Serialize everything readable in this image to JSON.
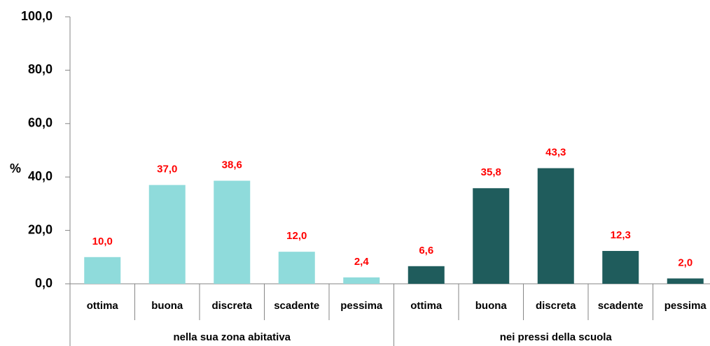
{
  "chart_data": {
    "type": "bar",
    "ylabel": "%",
    "ylim": [
      0,
      100
    ],
    "yticks": [
      {
        "value": 0,
        "label": "0,0"
      },
      {
        "value": 20,
        "label": "20,0"
      },
      {
        "value": 40,
        "label": "40,0"
      },
      {
        "value": 60,
        "label": "60,0"
      },
      {
        "value": 80,
        "label": "80,0"
      },
      {
        "value": 100,
        "label": "100,0"
      }
    ],
    "groups": [
      {
        "name": "nella sua zona abitativa",
        "color": "#8fdbdb",
        "categories": [
          "ottima",
          "buona",
          "discreta",
          "scadente",
          "pessima"
        ],
        "values": [
          10.0,
          37.0,
          38.6,
          12.0,
          2.4
        ],
        "value_labels": [
          "10,0",
          "37,0",
          "38,6",
          "12,0",
          "2,4"
        ]
      },
      {
        "name": "nei pressi della  scuola",
        "color": "#1f5c5c",
        "categories": [
          "ottima",
          "buona",
          "discreta",
          "scadente",
          "pessima"
        ],
        "values": [
          6.6,
          35.8,
          43.3,
          12.3,
          2.0
        ],
        "value_labels": [
          "6,6",
          "35,8",
          "43,3",
          "12,3",
          "2,0"
        ]
      }
    ],
    "value_label_color": "#ff0000"
  }
}
